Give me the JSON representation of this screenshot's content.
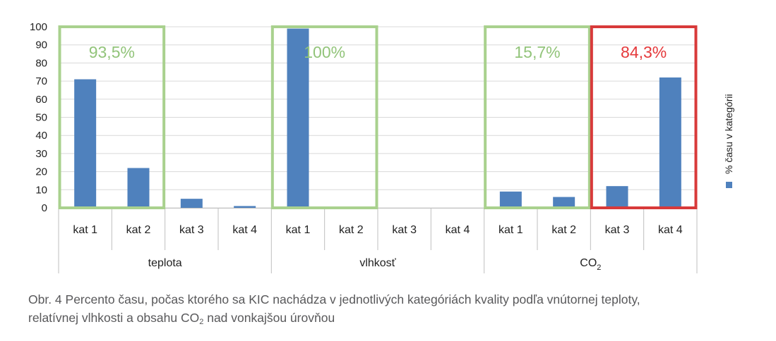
{
  "chart_data": {
    "type": "bar",
    "categories": [
      "kat 1",
      "kat 2",
      "kat 3",
      "kat 4",
      "kat 1",
      "kat 2",
      "kat 3",
      "kat 4",
      "kat 1",
      "kat 2",
      "kat 3",
      "kat 4"
    ],
    "groups": [
      {
        "label": "teplota",
        "categories": [
          "kat 1",
          "kat 2",
          "kat 3",
          "kat 4"
        ],
        "values": [
          71,
          22,
          5,
          1
        ]
      },
      {
        "label": "vlhkosť",
        "categories": [
          "kat 1",
          "kat 2",
          "kat 3",
          "kat 4"
        ],
        "values": [
          99,
          0.5,
          0,
          0
        ]
      },
      {
        "label": "CO",
        "label_subscript": "2",
        "categories": [
          "kat 1",
          "kat 2",
          "kat 3",
          "kat 4"
        ],
        "values": [
          9,
          6,
          12,
          72
        ]
      }
    ],
    "values": [
      71,
      22,
      5,
      1,
      99,
      0.5,
      0,
      0,
      9,
      6,
      12,
      72
    ],
    "series": [
      {
        "name": "% času v kategórii",
        "color": "#4f81bd"
      }
    ],
    "ylabel": "",
    "ylim": [
      0,
      100
    ],
    "yticks": [
      0,
      10,
      20,
      30,
      40,
      50,
      60,
      70,
      80,
      90,
      100
    ],
    "grid": true,
    "legend": "right",
    "annotations": [
      {
        "text": "93,5%",
        "group": 0,
        "spans": "kat 1–kat 2",
        "color": "#92c47a",
        "box_color": "#a9d18e"
      },
      {
        "text": "100%",
        "group": 1,
        "spans": "kat 1–kat 2",
        "color": "#92c47a",
        "box_color": "#a9d18e"
      },
      {
        "text": "15,7%",
        "group": 2,
        "spans": "kat 1–kat 2",
        "color": "#92c47a",
        "box_color": "#a9d18e"
      },
      {
        "text": "84,3%",
        "group": 2,
        "spans": "kat 3–kat 4",
        "color": "#e5393b",
        "box_color": "#d83a3a"
      }
    ]
  },
  "caption": {
    "line1": "Obr. 4 Percento času, počas ktorého sa KIC nachádza v jednotlivých kategóriách kvality podľa vnútornej teploty,",
    "line2_pre": "relatívnej vlhkosti a obsahu CO",
    "line2_sub": "2",
    "line2_post": " nad vonkajšou úrovňou"
  }
}
